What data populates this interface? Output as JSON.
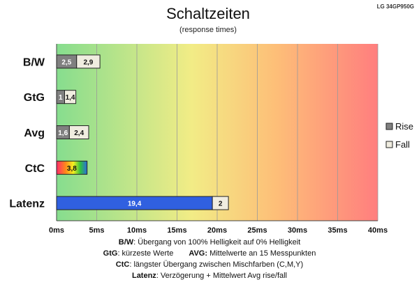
{
  "header": {
    "title": "Schaltzeiten",
    "subtitle": "(response times)",
    "model": "LG 34GP950G"
  },
  "chart_data": {
    "type": "bar",
    "orientation": "horizontal",
    "stacked": true,
    "categories": [
      "B/W",
      "GtG",
      "Avg",
      "CtC",
      "Latenz"
    ],
    "series": [
      {
        "name": "Rise",
        "values": [
          2.5,
          1,
          1.6,
          3.8,
          19.4
        ],
        "labels": [
          "2,5",
          "1",
          "1,6",
          "3,8",
          "19,4"
        ]
      },
      {
        "name": "Fall",
        "values": [
          2.9,
          1.4,
          2.4,
          null,
          2
        ],
        "labels": [
          "2,9",
          "1,4",
          "2,4",
          "",
          "2"
        ]
      }
    ],
    "xlim": [
      0,
      40
    ],
    "xticks": [
      "0ms",
      "5ms",
      "10ms",
      "15ms",
      "20ms",
      "25ms",
      "30ms",
      "35ms",
      "40ms"
    ],
    "grid": true,
    "legend": "right",
    "background": "gradient green-yellow-red",
    "colors": {
      "rise": "#808080",
      "fall": "#f0ede0",
      "latenz_rise": "#3060e0",
      "grad_green": "#86dd8e",
      "grad_yellow": "#f2ec86",
      "grad_orange": "#fdbf78",
      "grad_red": "#ff7e7e"
    }
  },
  "footer": {
    "line1_key": "B/W",
    "line1_text": ":  Übergang von 100% Helligkeit auf 0% Helligkeit",
    "line2a_key": "GtG",
    "line2a_text": ": kürzeste  Werte",
    "line2b_key": "AVG:",
    "line2b_text": " Mittelwerte  an 15 Messpunkten",
    "line3_key": "CtC",
    "line3_text": ": längster Übergang  zwischen Mischfarben (C,M,Y)",
    "line4_key": "Latenz",
    "line4_text": ": Verzögerung  + Mittelwert Avg rise/fall"
  }
}
